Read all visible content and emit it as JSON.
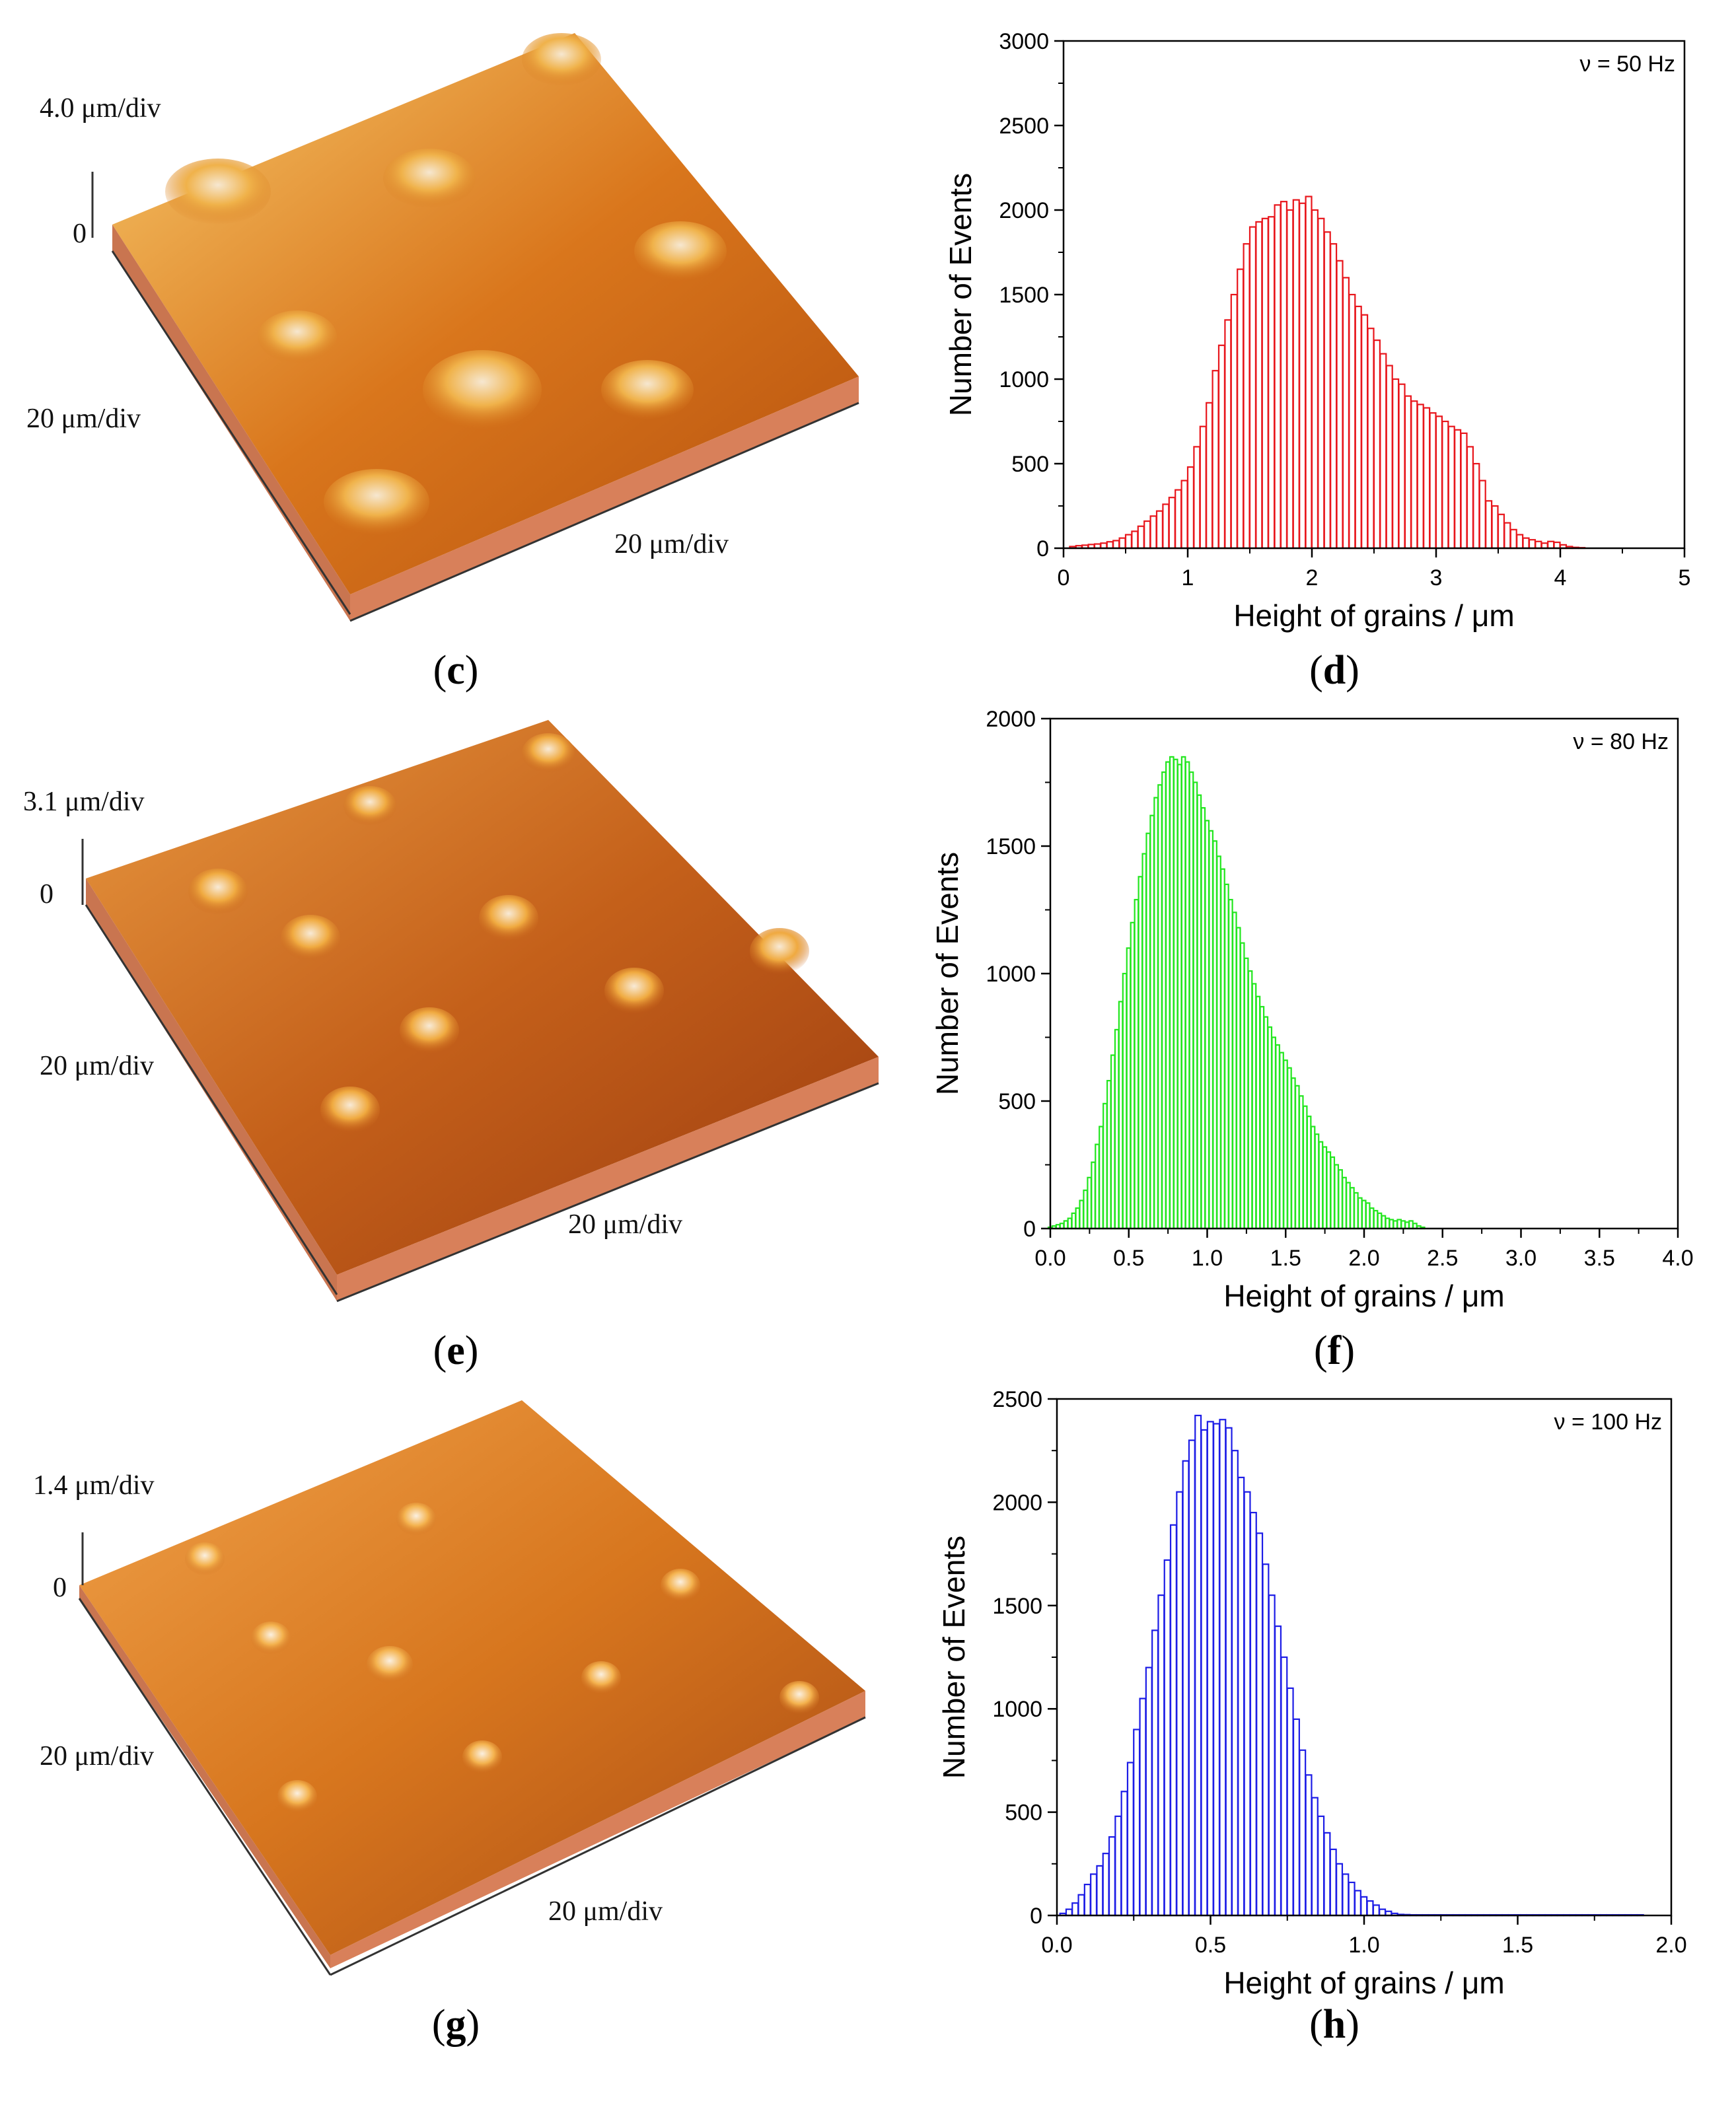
{
  "panels": {
    "c": {
      "letter": "c",
      "z_scale": "4.0 μm/div",
      "zero": "0",
      "x_scale": "20 μm/div",
      "y_scale": "20 μm/div"
    },
    "e": {
      "letter": "e",
      "z_scale": "3.1 μm/div",
      "zero": "0",
      "x_scale": "20 μm/div",
      "y_scale": "20 μm/div"
    },
    "g": {
      "letter": "g",
      "z_scale": "1.4 μm/div",
      "zero": "0",
      "x_scale": "20 μm/div",
      "y_scale": "20 μm/div"
    },
    "d": {
      "letter": "d"
    },
    "f": {
      "letter": "f"
    },
    "h": {
      "letter": "h"
    }
  },
  "colors": {
    "d": "#e8161c",
    "f": "#22e61e",
    "h": "#1c1ce6"
  },
  "chart_data": [
    {
      "id": "d",
      "type": "bar",
      "xlabel": "Height of grains / μm",
      "ylabel": "Number of Events",
      "annotation": "ν = 50 Hz",
      "xlim": [
        0,
        5
      ],
      "ylim": [
        0,
        3000
      ],
      "xticks": [
        "0",
        "1",
        "2",
        "3",
        "4",
        "5"
      ],
      "yticks": [
        "0",
        "500",
        "1000",
        "1500",
        "2000",
        "2500",
        "3000"
      ],
      "bin_width": 0.05,
      "x_start": 0.075,
      "values": [
        10,
        15,
        18,
        22,
        25,
        30,
        38,
        45,
        60,
        80,
        100,
        130,
        160,
        190,
        220,
        260,
        300,
        345,
        400,
        480,
        600,
        720,
        860,
        1050,
        1200,
        1350,
        1500,
        1650,
        1800,
        1900,
        1930,
        1950,
        1960,
        2030,
        2050,
        2000,
        2060,
        2040,
        2080,
        2000,
        1950,
        1870,
        1800,
        1700,
        1600,
        1500,
        1430,
        1380,
        1300,
        1230,
        1150,
        1080,
        1000,
        970,
        900,
        870,
        850,
        830,
        800,
        780,
        750,
        720,
        700,
        680,
        600,
        500,
        400,
        280,
        250,
        200,
        150,
        110,
        80,
        60,
        50,
        40,
        30,
        40,
        35,
        20,
        10,
        5,
        3
      ]
    },
    {
      "id": "f",
      "type": "bar",
      "xlabel": "Height of grains / μm",
      "ylabel": "Number of Events",
      "annotation": "ν = 80 Hz",
      "xlim": [
        0,
        4
      ],
      "ylim": [
        0,
        2000
      ],
      "xticks": [
        "0.0",
        "0.5",
        "1.0",
        "1.5",
        "2.0",
        "2.5",
        "3.0",
        "3.5",
        "4.0"
      ],
      "yticks": [
        "0",
        "500",
        "1000",
        "1500",
        "2000"
      ],
      "bin_width": 0.025,
      "x_start": 0.0,
      "values": [
        5,
        10,
        15,
        20,
        30,
        40,
        60,
        80,
        110,
        150,
        200,
        260,
        330,
        400,
        490,
        580,
        680,
        780,
        890,
        1000,
        1100,
        1200,
        1290,
        1380,
        1470,
        1550,
        1620,
        1690,
        1740,
        1790,
        1830,
        1850,
        1840,
        1820,
        1850,
        1830,
        1790,
        1750,
        1700,
        1650,
        1600,
        1560,
        1520,
        1460,
        1410,
        1350,
        1290,
        1240,
        1180,
        1120,
        1060,
        1010,
        960,
        910,
        870,
        830,
        790,
        750,
        720,
        690,
        660,
        630,
        590,
        560,
        520,
        480,
        440,
        400,
        370,
        340,
        320,
        300,
        280,
        250,
        230,
        200,
        180,
        160,
        140,
        120,
        110,
        100,
        80,
        70,
        60,
        50,
        40,
        35,
        30,
        35,
        30,
        25,
        30,
        20,
        10,
        5
      ]
    },
    {
      "id": "h",
      "type": "bar",
      "xlabel": "Height of grains / μm",
      "ylabel": "Number of Events",
      "annotation": "ν = 100 Hz",
      "xlim": [
        0,
        2
      ],
      "ylim": [
        0,
        2500
      ],
      "xticks": [
        "0.0",
        "0.5",
        "1.0",
        "1.5",
        "2.0"
      ],
      "yticks": [
        "0",
        "500",
        "1000",
        "1500",
        "2000",
        "2500"
      ],
      "bin_width": 0.02,
      "x_start": 0.02,
      "values": [
        10,
        30,
        60,
        100,
        150,
        200,
        240,
        300,
        380,
        480,
        600,
        740,
        900,
        1050,
        1200,
        1380,
        1550,
        1720,
        1890,
        2050,
        2200,
        2300,
        2420,
        2350,
        2390,
        2380,
        2400,
        2360,
        2250,
        2120,
        2050,
        1950,
        1850,
        1700,
        1550,
        1400,
        1250,
        1100,
        950,
        800,
        680,
        570,
        480,
        400,
        320,
        250,
        200,
        160,
        120,
        90,
        70,
        50,
        30,
        20,
        10,
        5,
        4,
        3,
        3,
        3,
        3,
        3,
        3,
        3,
        3,
        3,
        3,
        3,
        3,
        3,
        3,
        3,
        3,
        3,
        3,
        3,
        3,
        3,
        3,
        3,
        3,
        3,
        3,
        3,
        3,
        3,
        3,
        3,
        3,
        3,
        3,
        3,
        3,
        3,
        3
      ]
    }
  ]
}
